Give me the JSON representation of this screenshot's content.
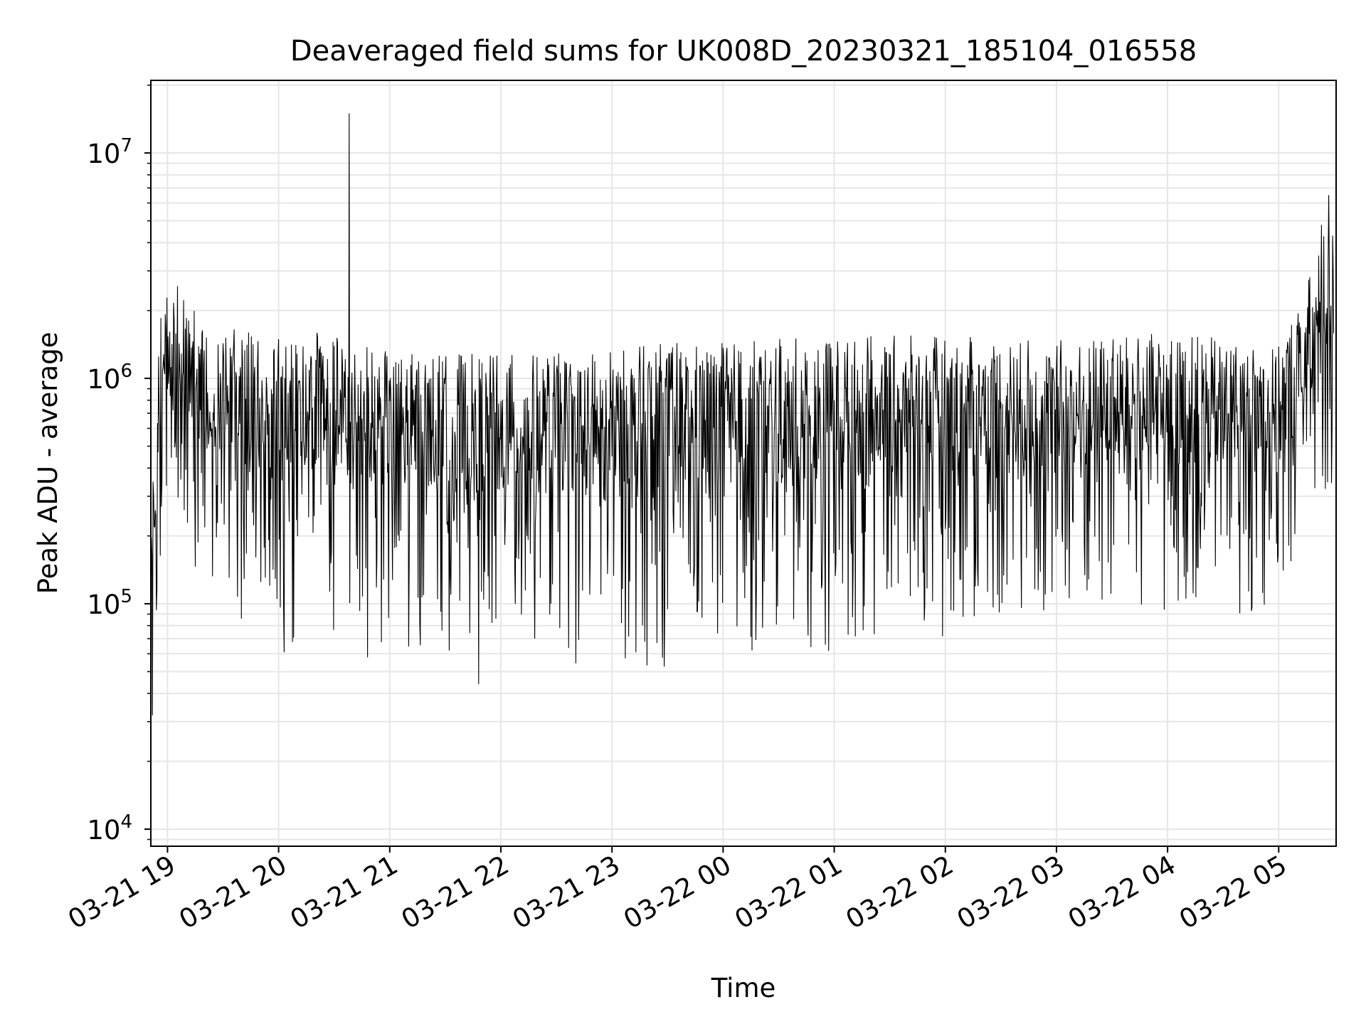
{
  "chart_data": {
    "type": "line",
    "title": "Deaveraged field sums for UK008D_20230321_185104_016558",
    "xlabel": "Time",
    "ylabel": "Peak ADU - average",
    "yscale": "log",
    "ylim": [
      8400,
      21000000
    ],
    "xlim": [
      "2023-03-21 18:51",
      "2023-03-22 05:31"
    ],
    "grid": true,
    "line_color": "#000000",
    "grid_color": "#e6e6e6",
    "x_ticks": [
      {
        "t": "2023-03-21 19:00",
        "label": "03-21 19"
      },
      {
        "t": "2023-03-21 20:00",
        "label": "03-21 20"
      },
      {
        "t": "2023-03-21 21:00",
        "label": "03-21 21"
      },
      {
        "t": "2023-03-21 22:00",
        "label": "03-21 22"
      },
      {
        "t": "2023-03-21 23:00",
        "label": "03-21 23"
      },
      {
        "t": "2023-03-22 00:00",
        "label": "03-22 00"
      },
      {
        "t": "2023-03-22 01:00",
        "label": "03-22 01"
      },
      {
        "t": "2023-03-22 02:00",
        "label": "03-22 02"
      },
      {
        "t": "2023-03-22 03:00",
        "label": "03-22 03"
      },
      {
        "t": "2023-03-22 04:00",
        "label": "03-22 04"
      },
      {
        "t": "2023-03-22 05:00",
        "label": "03-22 05"
      }
    ],
    "y_ticks": [
      {
        "value": 10000,
        "base": "10",
        "exp": "4"
      },
      {
        "value": 100000,
        "base": "10",
        "exp": "5"
      },
      {
        "value": 1000000,
        "base": "10",
        "exp": "6"
      },
      {
        "value": 10000000,
        "base": "10",
        "exp": "7"
      }
    ],
    "series": [
      {
        "envelope": [
          {
            "t": "2023-03-21 18:51",
            "low": 32000,
            "high": 260000
          },
          {
            "t": "2023-03-21 18:55",
            "low": 60000,
            "high": 2000000
          },
          {
            "t": "2023-03-21 19:00",
            "low": 200000,
            "high": 3300000
          },
          {
            "t": "2023-03-21 19:10",
            "low": 150000,
            "high": 2400000
          },
          {
            "t": "2023-03-21 19:20",
            "low": 110000,
            "high": 1600000
          },
          {
            "t": "2023-03-21 19:30",
            "low": 90000,
            "high": 1700000
          },
          {
            "t": "2023-03-21 19:45",
            "low": 65000,
            "high": 1600000
          },
          {
            "t": "2023-03-21 20:00",
            "low": 52000,
            "high": 1550000
          },
          {
            "t": "2023-03-21 20:20",
            "low": 60000,
            "high": 1600000
          },
          {
            "t": "2023-03-21 20:40",
            "low": 55000,
            "high": 1500000
          },
          {
            "t": "2023-03-21 21:00",
            "low": 60000,
            "high": 1300000
          },
          {
            "t": "2023-03-21 21:30",
            "low": 60000,
            "high": 1300000
          },
          {
            "t": "2023-03-21 22:00",
            "low": 50000,
            "high": 1300000
          },
          {
            "t": "2023-03-21 22:30",
            "low": 52000,
            "high": 1300000
          },
          {
            "t": "2023-03-21 23:00",
            "low": 55000,
            "high": 1350000
          },
          {
            "t": "2023-03-21 23:30",
            "low": 52000,
            "high": 1450000
          },
          {
            "t": "2023-03-22 00:00",
            "low": 55000,
            "high": 1450000
          },
          {
            "t": "2023-03-22 00:30",
            "low": 52000,
            "high": 1500000
          },
          {
            "t": "2023-03-22 01:00",
            "low": 60000,
            "high": 1550000
          },
          {
            "t": "2023-03-22 01:30",
            "low": 65000,
            "high": 1550000
          },
          {
            "t": "2023-03-22 02:00",
            "low": 70000,
            "high": 1550000
          },
          {
            "t": "2023-03-22 02:30",
            "low": 80000,
            "high": 1500000
          },
          {
            "t": "2023-03-22 03:00",
            "low": 75000,
            "high": 1500000
          },
          {
            "t": "2023-03-22 03:30",
            "low": 80000,
            "high": 1550000
          },
          {
            "t": "2023-03-22 04:00",
            "low": 80000,
            "high": 1600000
          },
          {
            "t": "2023-03-22 04:30",
            "low": 85000,
            "high": 1500000
          },
          {
            "t": "2023-03-22 05:00",
            "low": 90000,
            "high": 1400000
          },
          {
            "t": "2023-03-22 05:20",
            "low": 150000,
            "high": 3500000
          },
          {
            "t": "2023-03-22 05:30",
            "low": 200000,
            "high": 6500000
          }
        ],
        "spikes": [
          {
            "t": "2023-03-21 20:38",
            "value": 15000000
          },
          {
            "t": "2023-03-21 21:48",
            "value": 44000
          },
          {
            "t": "2023-03-22 05:27",
            "value": 6500000
          },
          {
            "t": "2023-03-22 05:23",
            "value": 4800000
          },
          {
            "t": "2023-03-21 18:52",
            "value": 32000
          }
        ]
      }
    ]
  }
}
